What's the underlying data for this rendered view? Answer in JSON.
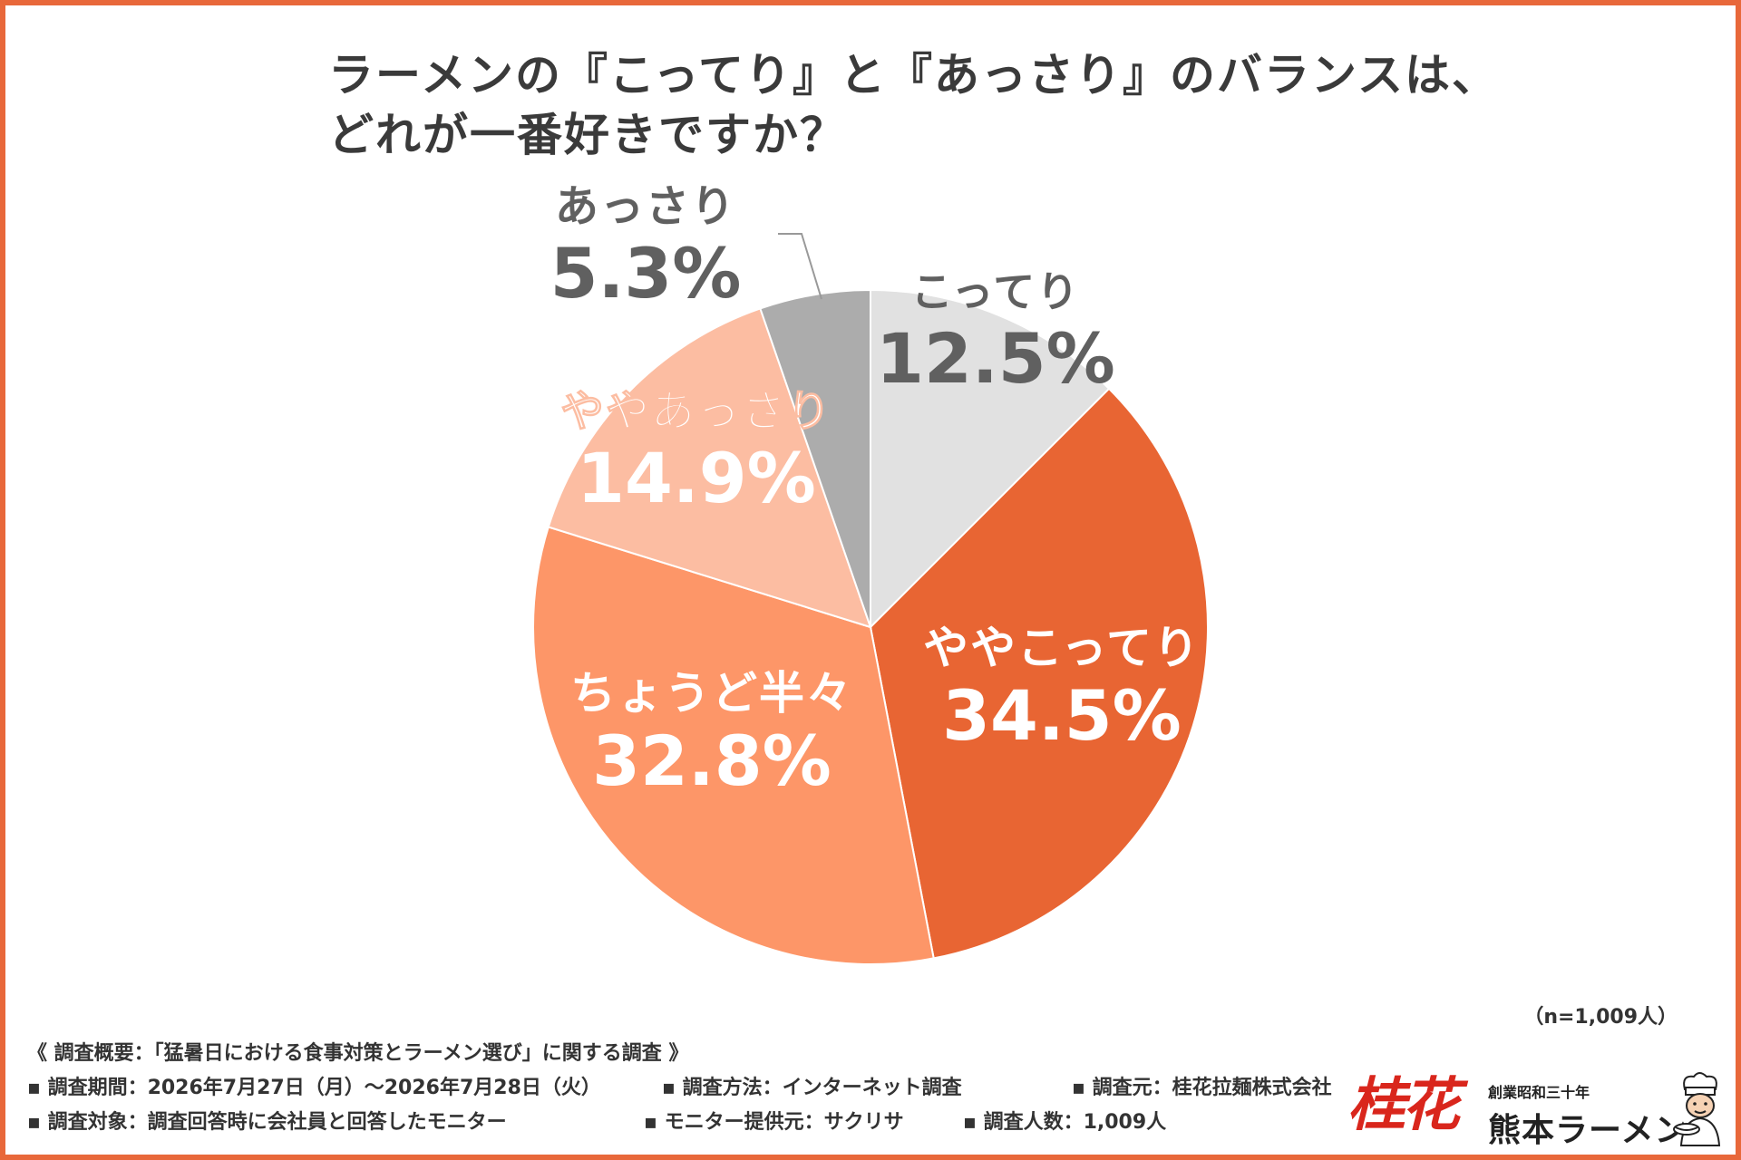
{
  "title": {
    "line1": "ラーメンの『こってり』と『あっさり』のバランスは、",
    "line2": "どれが一番好きですか？"
  },
  "sample_size": "（n=1,009人）",
  "colors": {
    "border": "#e8683a",
    "kotteri": "#e1e1e1",
    "yaya_kotteri": "#e86533",
    "chodo": "#fd9668",
    "yaya_assari": "#fcbda2",
    "assari": "#acacac"
  },
  "chart_data": {
    "type": "pie",
    "start": "12 o'clock",
    "direction": "clockwise",
    "slices": [
      {
        "label": "こってり",
        "value": 12.5,
        "display": "12.5%",
        "color": "#e1e1e1",
        "text_color": "#606060"
      },
      {
        "label": "ややこってり",
        "value": 34.5,
        "display": "34.5%",
        "color": "#e86533",
        "text_color": "#ffffff"
      },
      {
        "label": "ちょうど半々",
        "value": 32.8,
        "display": "32.8%",
        "color": "#fd9668",
        "text_color": "#ffffff"
      },
      {
        "label": "ややあっさり",
        "value": 14.9,
        "display": "14.9%",
        "color": "#fcbda2",
        "text_color": "#ffffff"
      },
      {
        "label": "あっさり",
        "value": 5.3,
        "display": "5.3%",
        "color": "#acacac",
        "text_color": "#606060"
      }
    ]
  },
  "footer": {
    "overview": "《 調査概要：「猛暑日における食事対策とラーメン選び」に関する調査 》",
    "period": "▪ 調査期間：2026年7月27日（月）～2026年7月28日（火）",
    "method": "▪ 調査方法：インターネット調査",
    "source": "▪ 調査元：桂花拉麺株式会社",
    "target": "▪ 調査対象：調査回答時に会社員と回答したモニター",
    "provider": "▪ モニター提供元：サクリサ",
    "count": "▪ 調査人数：1,009人"
  },
  "logo": {
    "mark": "桂花",
    "tagline": "創業昭和三十年",
    "name": "熊本ラーメン",
    "icon": "chef-icon"
  }
}
